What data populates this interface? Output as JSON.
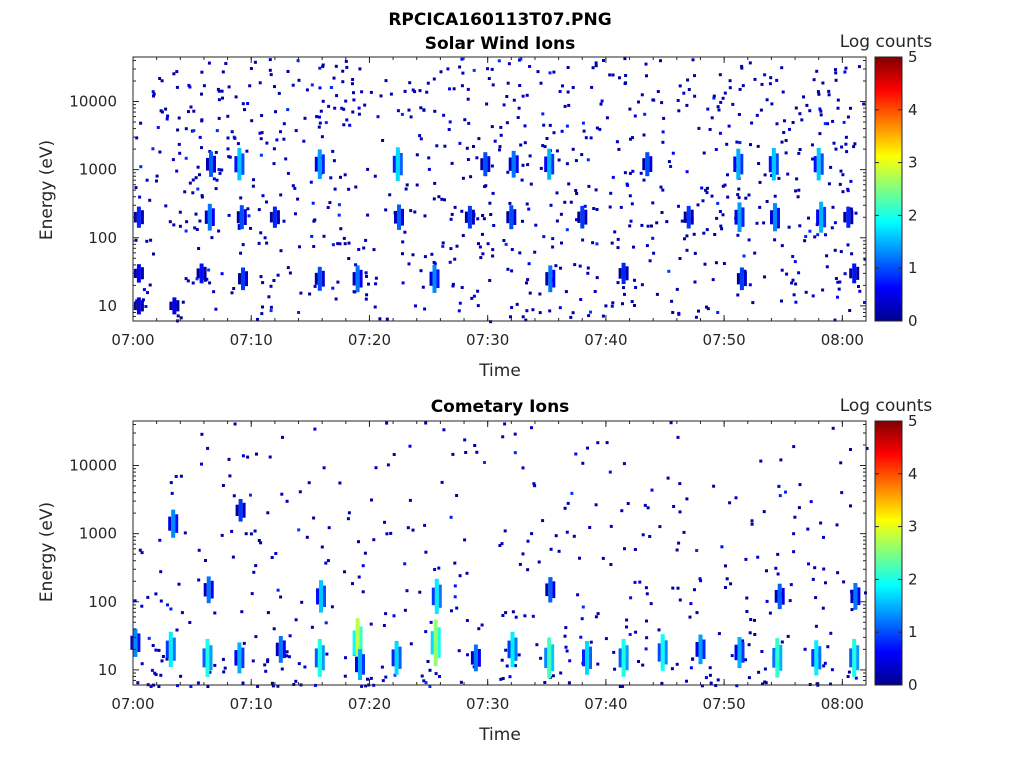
{
  "figure": {
    "main_title": "RPCICA160113T07.PNG"
  },
  "colorscale": {
    "stops": [
      "#00008f",
      "#0000ff",
      "#0080ff",
      "#00ffff",
      "#80ff80",
      "#ffff00",
      "#ff8000",
      "#ff0000",
      "#800000"
    ]
  },
  "chart_data": [
    {
      "type": "heatmap",
      "title": "Solar Wind Ions",
      "xlabel": "Time",
      "ylabel": "Energy (eV)",
      "x_ticks": [
        "07:00",
        "07:10",
        "07:20",
        "07:30",
        "07:40",
        "07:50",
        "08:00"
      ],
      "x_range_minutes": [
        0,
        62
      ],
      "y_scale": "log",
      "y_ticks": [
        "10",
        "100",
        "1000",
        "10000"
      ],
      "y_range_eV": [
        6,
        45000
      ],
      "colorbar": {
        "label": "Log counts",
        "range": [
          0,
          5
        ],
        "ticks": [
          "0",
          "1",
          "2",
          "3",
          "4",
          "5"
        ]
      },
      "cells": [
        {
          "t": 0.5,
          "e": 10,
          "v": 0.5
        },
        {
          "t": 0.5,
          "e": 30,
          "v": 0.6
        },
        {
          "t": 0.5,
          "e": 200,
          "v": 0.8
        },
        {
          "t": 3.5,
          "e": 10,
          "v": 0.5
        },
        {
          "t": 5.8,
          "e": 30,
          "v": 0.7
        },
        {
          "t": 6.5,
          "e": 200,
          "v": 1.2
        },
        {
          "t": 6.6,
          "e": 1200,
          "v": 1.1
        },
        {
          "t": 9.0,
          "e": 1200,
          "v": 1.6
        },
        {
          "t": 9.2,
          "e": 200,
          "v": 1.0
        },
        {
          "t": 9.3,
          "e": 25,
          "v": 0.9
        },
        {
          "t": 12.0,
          "e": 200,
          "v": 0.8
        },
        {
          "t": 15.8,
          "e": 25,
          "v": 1.0
        },
        {
          "t": 15.8,
          "e": 1200,
          "v": 1.4
        },
        {
          "t": 19.0,
          "e": 25,
          "v": 1.2
        },
        {
          "t": 22.4,
          "e": 1200,
          "v": 1.7
        },
        {
          "t": 22.5,
          "e": 200,
          "v": 1.1
        },
        {
          "t": 25.5,
          "e": 25,
          "v": 1.3
        },
        {
          "t": 28.5,
          "e": 200,
          "v": 0.9
        },
        {
          "t": 29.8,
          "e": 1200,
          "v": 1.0
        },
        {
          "t": 32.0,
          "e": 200,
          "v": 1.0
        },
        {
          "t": 32.2,
          "e": 1200,
          "v": 1.2
        },
        {
          "t": 35.2,
          "e": 1200,
          "v": 1.5
        },
        {
          "t": 35.3,
          "e": 25,
          "v": 1.2
        },
        {
          "t": 38.0,
          "e": 200,
          "v": 0.9
        },
        {
          "t": 41.5,
          "e": 30,
          "v": 0.8
        },
        {
          "t": 43.5,
          "e": 1200,
          "v": 1.0
        },
        {
          "t": 47.0,
          "e": 200,
          "v": 0.9
        },
        {
          "t": 51.2,
          "e": 1200,
          "v": 1.5
        },
        {
          "t": 51.3,
          "e": 200,
          "v": 1.4
        },
        {
          "t": 51.5,
          "e": 25,
          "v": 0.9
        },
        {
          "t": 54.2,
          "e": 1200,
          "v": 1.6
        },
        {
          "t": 54.3,
          "e": 200,
          "v": 1.3
        },
        {
          "t": 58.0,
          "e": 1200,
          "v": 1.6
        },
        {
          "t": 58.2,
          "e": 200,
          "v": 1.5
        },
        {
          "t": 60.5,
          "e": 200,
          "v": 0.8
        },
        {
          "t": 61.0,
          "e": 30,
          "v": 0.7
        }
      ]
    },
    {
      "type": "heatmap",
      "title": "Cometary Ions",
      "xlabel": "Time",
      "ylabel": "Energy (eV)",
      "x_ticks": [
        "07:00",
        "07:10",
        "07:20",
        "07:30",
        "07:40",
        "07:50",
        "08:00"
      ],
      "x_range_minutes": [
        0,
        62
      ],
      "y_scale": "log",
      "y_ticks": [
        "10",
        "100",
        "1000",
        "10000"
      ],
      "y_range_eV": [
        6,
        45000
      ],
      "colorbar": {
        "label": "Log counts",
        "range": [
          0,
          5
        ],
        "ticks": [
          "0",
          "1",
          "2",
          "3",
          "4",
          "5"
        ]
      },
      "cells": [
        {
          "t": 0.2,
          "e": 25,
          "v": 1.3
        },
        {
          "t": 3.2,
          "e": 20,
          "v": 1.8
        },
        {
          "t": 3.4,
          "e": 1400,
          "v": 1.3
        },
        {
          "t": 6.3,
          "e": 15,
          "v": 2.0
        },
        {
          "t": 6.4,
          "e": 150,
          "v": 1.2
        },
        {
          "t": 9.0,
          "e": 15,
          "v": 1.5
        },
        {
          "t": 9.1,
          "e": 2200,
          "v": 0.9
        },
        {
          "t": 12.5,
          "e": 20,
          "v": 1.2
        },
        {
          "t": 15.8,
          "e": 15,
          "v": 2.0
        },
        {
          "t": 15.9,
          "e": 120,
          "v": 1.6
        },
        {
          "t": 19.0,
          "e": 25,
          "v": 2.8
        },
        {
          "t": 19.2,
          "e": 12,
          "v": 1.5
        },
        {
          "t": 22.3,
          "e": 15,
          "v": 1.7
        },
        {
          "t": 25.6,
          "e": 25,
          "v": 2.6
        },
        {
          "t": 25.7,
          "e": 120,
          "v": 1.8
        },
        {
          "t": 29.0,
          "e": 15,
          "v": 1.2
        },
        {
          "t": 32.1,
          "e": 20,
          "v": 1.8
        },
        {
          "t": 35.2,
          "e": 15,
          "v": 2.2
        },
        {
          "t": 35.3,
          "e": 150,
          "v": 1.1
        },
        {
          "t": 38.4,
          "e": 15,
          "v": 1.7
        },
        {
          "t": 41.5,
          "e": 15,
          "v": 2.0
        },
        {
          "t": 44.8,
          "e": 18,
          "v": 1.9
        },
        {
          "t": 48.0,
          "e": 20,
          "v": 1.4
        },
        {
          "t": 51.3,
          "e": 18,
          "v": 1.5
        },
        {
          "t": 54.5,
          "e": 15,
          "v": 2.1
        },
        {
          "t": 54.7,
          "e": 120,
          "v": 1.1
        },
        {
          "t": 57.8,
          "e": 15,
          "v": 1.8
        },
        {
          "t": 61.0,
          "e": 15,
          "v": 2.0
        },
        {
          "t": 61.1,
          "e": 120,
          "v": 1.2
        }
      ]
    }
  ]
}
